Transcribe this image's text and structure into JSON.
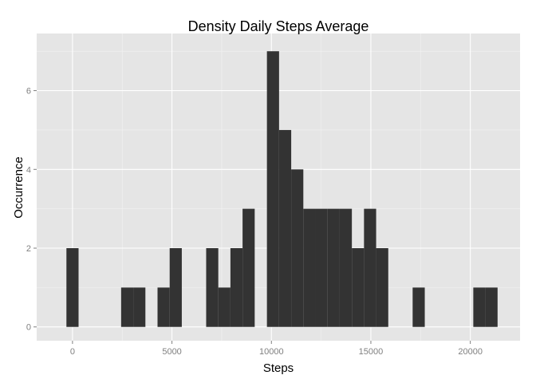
{
  "chart_data": {
    "type": "bar",
    "title": "Density Daily Steps Average",
    "xlabel": "Steps",
    "ylabel": "Occurrence",
    "xlim": [
      -1800,
      22500
    ],
    "ylim": [
      -0.35,
      7.45
    ],
    "binwidth": 610,
    "xticks": [
      "0",
      "5000",
      "10000",
      "15000",
      "20000"
    ],
    "xtick_values": [
      0,
      5000,
      10000,
      15000,
      20000
    ],
    "yticks": [
      "0",
      "2",
      "4",
      "6"
    ],
    "ytick_values": [
      0,
      2,
      4,
      6
    ],
    "bins": [
      {
        "x0": -305,
        "count": 2
      },
      {
        "x0": 2445,
        "count": 1
      },
      {
        "x0": 3055,
        "count": 1
      },
      {
        "x0": 4275,
        "count": 1
      },
      {
        "x0": 4885,
        "count": 2
      },
      {
        "x0": 6720,
        "count": 2
      },
      {
        "x0": 7330,
        "count": 1
      },
      {
        "x0": 7940,
        "count": 2
      },
      {
        "x0": 8550,
        "count": 3
      },
      {
        "x0": 9775,
        "count": 7
      },
      {
        "x0": 10385,
        "count": 5
      },
      {
        "x0": 10995,
        "count": 4
      },
      {
        "x0": 11605,
        "count": 3
      },
      {
        "x0": 12215,
        "count": 3
      },
      {
        "x0": 12825,
        "count": 3
      },
      {
        "x0": 13435,
        "count": 3
      },
      {
        "x0": 14045,
        "count": 2
      },
      {
        "x0": 14655,
        "count": 3
      },
      {
        "x0": 15265,
        "count": 2
      },
      {
        "x0": 17100,
        "count": 1
      },
      {
        "x0": 20150,
        "count": 1
      },
      {
        "x0": 20760,
        "count": 1
      }
    ],
    "grid": true,
    "colors": {
      "panel": "#e5e5e5",
      "grid_major": "#ffffff",
      "grid_minor": "#f2f2f2",
      "bar": "#333333",
      "tick": "#7f7f7f"
    }
  }
}
